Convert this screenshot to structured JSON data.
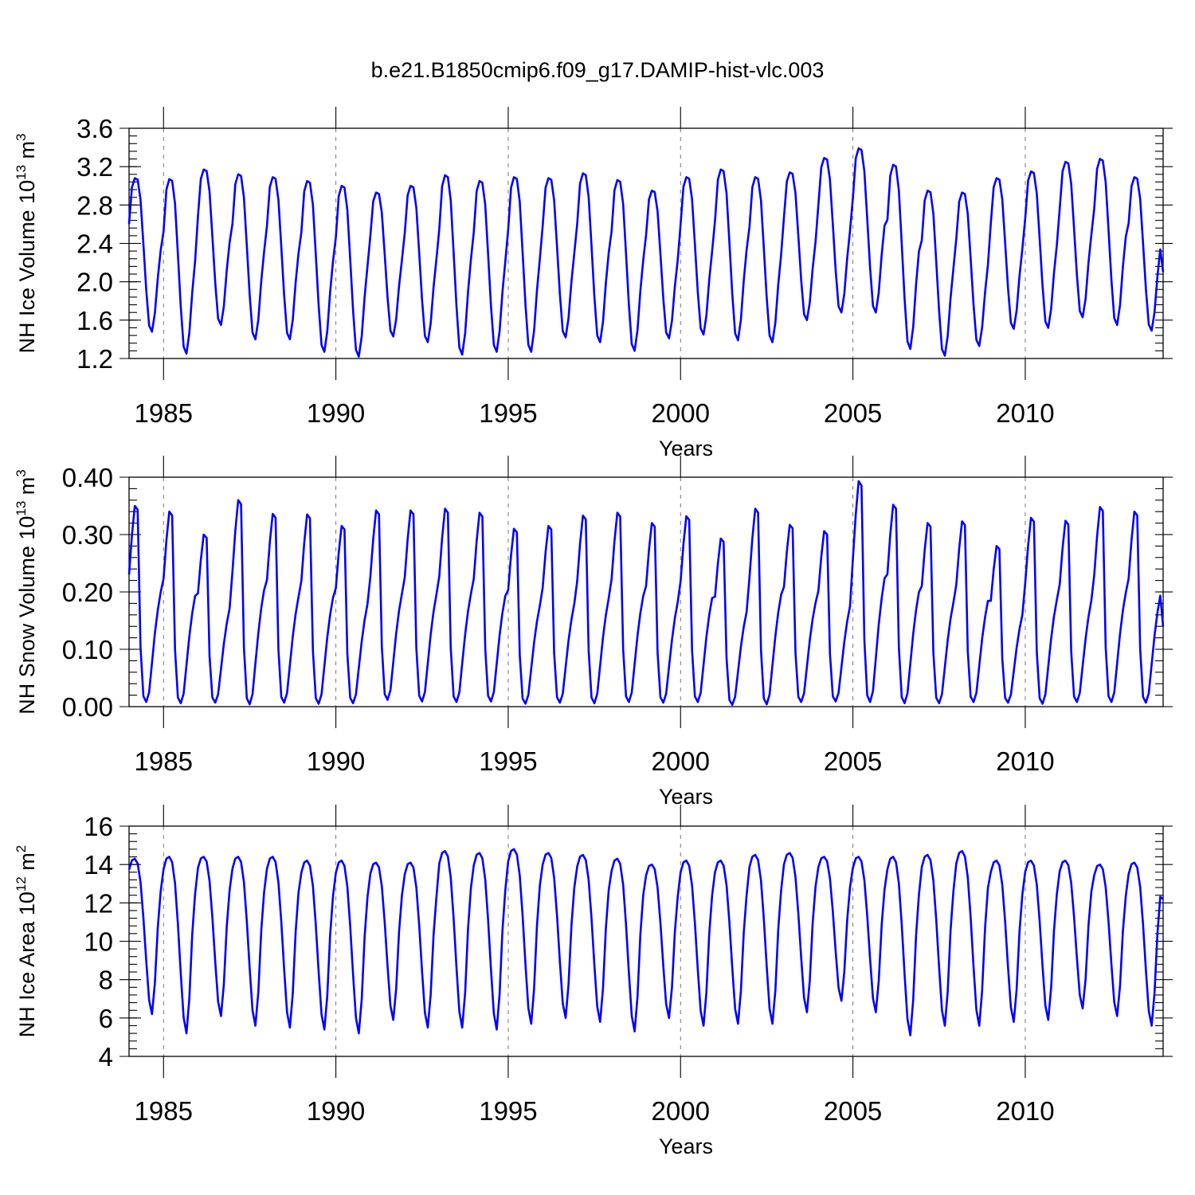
{
  "title": "b.e21.B1850cmip6.f09_g17.DAMIP-hist-vlc.003",
  "chart_data": [
    {
      "type": "line",
      "name": "ice-volume",
      "ylabel": "NH Ice Volume 10",
      "ylabel_exp": "13",
      "ylabel_unit": "m",
      "ylabel_unit_exp": "3",
      "xlabel": "Years",
      "xlim": [
        1984.0,
        2014.0
      ],
      "ylim": [
        1.2,
        3.6
      ],
      "xticks": [
        1985,
        1990,
        1995,
        2000,
        2005,
        2010
      ],
      "yticks": [
        1.2,
        1.6,
        2.0,
        2.4,
        2.8,
        3.2,
        3.6
      ],
      "ytick_labels": [
        "1.2",
        "1.6",
        "2.0",
        "2.4",
        "2.8",
        "3.2",
        "3.6"
      ],
      "minor_step": 0.08,
      "series_color": "#0000ff",
      "cycle_shape": "volume",
      "end_value": 2.1,
      "annual_max": [
        3.08,
        3.07,
        3.17,
        3.12,
        3.09,
        3.05,
        3.0,
        2.93,
        3.0,
        3.11,
        3.05,
        3.09,
        3.08,
        3.13,
        3.06,
        2.95,
        3.09,
        3.17,
        3.09,
        3.14,
        3.29,
        3.39,
        3.22,
        2.95,
        2.93,
        3.08,
        3.15,
        3.25,
        3.28,
        3.09
      ],
      "annual_min": [
        1.48,
        1.25,
        1.55,
        1.4,
        1.4,
        1.27,
        1.22,
        1.43,
        1.37,
        1.24,
        1.27,
        1.27,
        1.42,
        1.37,
        1.28,
        1.41,
        1.45,
        1.39,
        1.37,
        1.6,
        1.68,
        1.68,
        1.3,
        1.23,
        1.33,
        1.51,
        1.52,
        1.63,
        1.55,
        1.49
      ]
    },
    {
      "type": "line",
      "name": "snow-volume",
      "ylabel": "NH Snow Volume 10",
      "ylabel_exp": "13",
      "ylabel_unit": "m",
      "ylabel_unit_exp": "3",
      "xlabel": "Years",
      "xlim": [
        1984.0,
        2014.0
      ],
      "ylim": [
        0.0,
        0.4
      ],
      "xticks": [
        1985,
        1990,
        1995,
        2000,
        2005,
        2010
      ],
      "yticks": [
        0.0,
        0.1,
        0.2,
        0.3,
        0.4
      ],
      "ytick_labels": [
        "0.00",
        "0.10",
        "0.20",
        "0.30",
        "0.40"
      ],
      "minor_step": 0.02,
      "series_color": "#0000ff",
      "cycle_shape": "snow",
      "end_value": 0.14,
      "annual_max": [
        0.35,
        0.34,
        0.3,
        0.36,
        0.336,
        0.335,
        0.315,
        0.342,
        0.342,
        0.345,
        0.338,
        0.31,
        0.315,
        0.333,
        0.338,
        0.32,
        0.332,
        0.293,
        0.345,
        0.317,
        0.306,
        0.393,
        0.352,
        0.32,
        0.323,
        0.28,
        0.329,
        0.324,
        0.348,
        0.34
      ],
      "annual_min": [
        0.008,
        0.006,
        0.007,
        0.004,
        0.007,
        0.005,
        0.006,
        0.012,
        0.009,
        0.008,
        0.009,
        0.005,
        0.007,
        0.006,
        0.008,
        0.007,
        0.008,
        0.003,
        0.004,
        0.008,
        0.009,
        0.008,
        0.006,
        0.006,
        0.008,
        0.007,
        0.005,
        0.008,
        0.008,
        0.007
      ]
    },
    {
      "type": "line",
      "name": "ice-area",
      "ylabel": "NH Ice Area 10",
      "ylabel_exp": "12",
      "ylabel_unit": "m",
      "ylabel_unit_exp": "2",
      "xlabel": "Years",
      "xlim": [
        1984.0,
        2014.0
      ],
      "ylim": [
        4,
        16
      ],
      "xticks": [
        1985,
        1990,
        1995,
        2000,
        2005,
        2010
      ],
      "yticks": [
        4,
        6,
        8,
        10,
        12,
        14,
        16
      ],
      "ytick_labels": [
        "4",
        "6",
        "8",
        "10",
        "12",
        "14",
        "16"
      ],
      "minor_step": 0.4,
      "series_color": "#0000ff",
      "cycle_shape": "area",
      "end_value": 12.2,
      "annual_max": [
        14.3,
        14.4,
        14.4,
        14.4,
        14.4,
        14.2,
        14.2,
        14.1,
        14.1,
        14.7,
        14.6,
        14.8,
        14.6,
        14.5,
        14.3,
        14.0,
        14.2,
        14.2,
        14.5,
        14.6,
        14.4,
        14.4,
        14.4,
        14.5,
        14.7,
        14.2,
        14.2,
        14.2,
        14.0,
        14.1
      ],
      "annual_min": [
        6.2,
        5.2,
        6.1,
        5.6,
        5.5,
        5.4,
        5.2,
        5.9,
        5.5,
        5.5,
        5.4,
        5.7,
        6.0,
        5.8,
        5.3,
        6.0,
        5.6,
        5.7,
        5.7,
        6.3,
        6.9,
        6.3,
        5.1,
        5.6,
        5.6,
        5.8,
        5.9,
        6.5,
        6.1,
        5.6
      ]
    }
  ]
}
